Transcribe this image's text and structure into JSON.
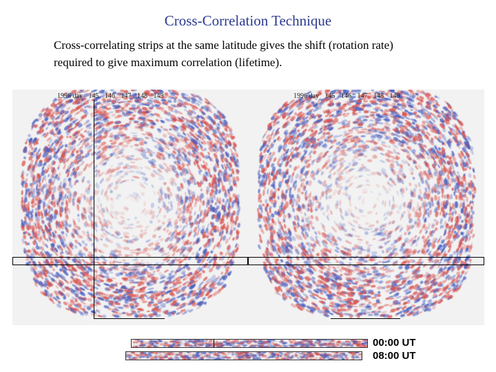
{
  "title": "Cross-Correlation Technique",
  "description_lines": [
    "Cross-correlating strips at the same latitude gives the shift (rotation rate)",
    "required to give maximum  correlation (lifetime)."
  ],
  "day_axis": {
    "year": "1996 day",
    "days": [
      "145",
      "146",
      "147",
      "148",
      "149"
    ]
  },
  "strip_times": [
    "00:00 UT",
    "08:00 UT"
  ],
  "colors": {
    "title": "#2b3a8f",
    "positive": "#d9534f",
    "negative": "#4a5fc1"
  }
}
